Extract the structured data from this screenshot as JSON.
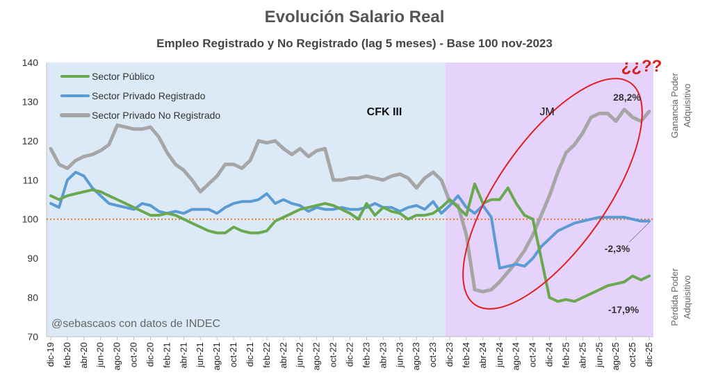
{
  "chart_data": {
    "type": "line",
    "title": "Evolución Salario Real",
    "subtitle": "Empleo Registrado y No Registrado (lag 5 meses) - Base 100 nov-2023",
    "ylim": [
      70,
      140
    ],
    "yticks": [
      "70",
      "80",
      "90",
      "100",
      "110",
      "120",
      "130",
      "140"
    ],
    "x_tick_labels": [
      "dic-19",
      "feb-20",
      "abr-20",
      "jun-20",
      "ago-20",
      "oct-20",
      "dic-20",
      "feb-21",
      "abr-21",
      "jun-21",
      "ago-21",
      "oct-21",
      "dic-21",
      "feb-22",
      "abr-22",
      "jun-22",
      "ago-22",
      "oct-22",
      "dic-22",
      "feb-23",
      "abr-23",
      "jun-23",
      "ago-23",
      "oct-23",
      "dic-23",
      "feb-24",
      "abr-24",
      "jun-24",
      "ago-24",
      "oct-24",
      "dic-24",
      "feb-25",
      "abr-25",
      "jun-25",
      "ago-25",
      "oct-25",
      "dic-25"
    ],
    "n_points": 73,
    "reference_line": 100,
    "periods": [
      {
        "label": "CFK III",
        "start_index": 0,
        "end_index": 48,
        "color": "#dce9f6"
      },
      {
        "label": "JM",
        "start_index": 48,
        "end_index": 73,
        "color": "#e5d3fb"
      }
    ],
    "series": [
      {
        "name": "Sector Público",
        "color": "#6aa84f",
        "values": [
          106,
          105,
          106,
          106.5,
          107,
          107.5,
          107,
          106,
          105,
          104,
          103,
          102,
          101,
          101,
          101.5,
          101,
          100,
          99,
          98,
          97,
          96.5,
          96.5,
          98,
          97,
          96.5,
          96.5,
          97,
          99.5,
          100.5,
          101.5,
          102.5,
          103,
          103.5,
          104,
          103.5,
          102.5,
          101.5,
          100,
          104,
          101,
          103,
          102,
          101.5,
          100,
          101,
          101,
          101.5,
          103,
          105,
          103,
          101,
          109,
          104,
          105,
          105,
          108,
          104,
          101,
          100,
          90,
          80,
          79,
          79.5,
          79,
          80,
          81,
          82,
          83,
          83.5,
          84,
          85.5,
          84.5,
          85.5
        ]
      },
      {
        "name": "Sector Privado Registrado",
        "color": "#5b9bd5",
        "values": [
          104,
          103,
          110,
          112,
          111,
          108,
          106,
          104,
          103.5,
          103,
          102.5,
          104,
          103.5,
          102,
          101.5,
          102,
          101.5,
          102.5,
          102.5,
          102.5,
          101.5,
          103,
          104,
          104.5,
          104.5,
          105,
          106.5,
          104,
          105,
          104,
          103.5,
          102,
          103,
          102.5,
          102.5,
          103,
          102.5,
          102.5,
          103,
          104,
          103,
          103,
          102,
          103,
          103.5,
          102.5,
          104.5,
          101.5,
          103.5,
          106,
          103,
          101.5,
          103.5,
          100.5,
          87.5,
          88,
          88.5,
          88,
          90,
          93,
          95,
          97,
          98,
          99,
          99.5,
          100,
          100.5,
          100.5,
          100.5,
          100.5,
          100,
          99.5,
          99.5
        ]
      },
      {
        "name": "Sector Privado No Registrado",
        "color": "#a6a6a6",
        "values": [
          118,
          114,
          113,
          115,
          116,
          116.5,
          117.5,
          119,
          124,
          123.5,
          123,
          123,
          123.5,
          121,
          117,
          114,
          112.5,
          110,
          107,
          109,
          111,
          114,
          114,
          113,
          115,
          120,
          119.5,
          120,
          118,
          116.5,
          118,
          116,
          117.5,
          118,
          110,
          110,
          110.5,
          110.5,
          111,
          110.5,
          110,
          111,
          111.5,
          110.5,
          108,
          110.5,
          112,
          110,
          104.5,
          103.5,
          96,
          82,
          81.5,
          82,
          84,
          86.5,
          89,
          92,
          96,
          101,
          106,
          112,
          117,
          119,
          122,
          126,
          127,
          127,
          125,
          128,
          126,
          125,
          127.5
        ]
      }
    ],
    "annotations": {
      "gain_value": "28,2%",
      "mid_value": "-2,3%",
      "low_value": "-17,9%",
      "question": "¿¿??",
      "side_top": [
        "Ganancia Poder",
        "Adquisitivo"
      ],
      "side_bottom": [
        "Pérdida Poder",
        "Adquisitivo"
      ],
      "credit": "@sebascaos con datos de INDEC"
    }
  }
}
